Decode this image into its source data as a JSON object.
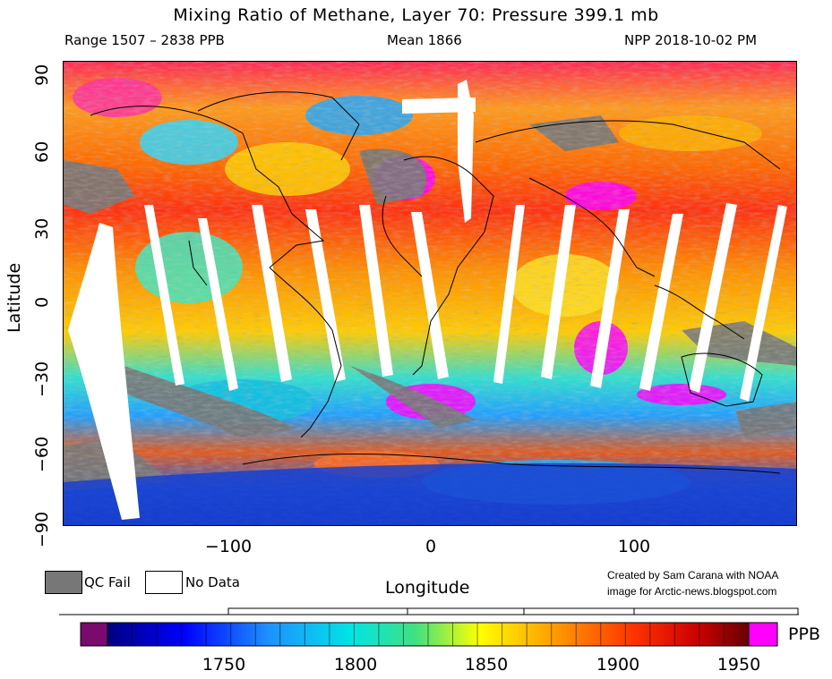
{
  "header": {
    "title": "Mixing Ratio of Methane, Layer 70: Pressure 399.1 mb",
    "range": "Range 1507 – 2838 PPB",
    "mean": "Mean 1866",
    "satellite": "NPP 2018-10-02 PM"
  },
  "axes": {
    "xlabel": "Longitude",
    "ylabel": "Latitude",
    "xticks": [
      "−100",
      "0",
      "100"
    ],
    "yticks": [
      "90",
      "60",
      "30",
      "0",
      "−30",
      "−60",
      "−90"
    ]
  },
  "legend": {
    "qc_fail_label": "QC Fail",
    "qc_fail_color": "#777777",
    "no_data_label": "No Data",
    "no_data_color": "#ffffff"
  },
  "credit": {
    "line1": "Created by Sam Carana with NOAA",
    "line2": "image for Arctic-news.blogspot.com"
  },
  "colorbar": {
    "unit": "PPB",
    "tick_labels": [
      "1750",
      "1800",
      "1850",
      "1900",
      "1950"
    ],
    "low_color": "#7a0a6e",
    "high_color": "#ff00ff"
  }
}
